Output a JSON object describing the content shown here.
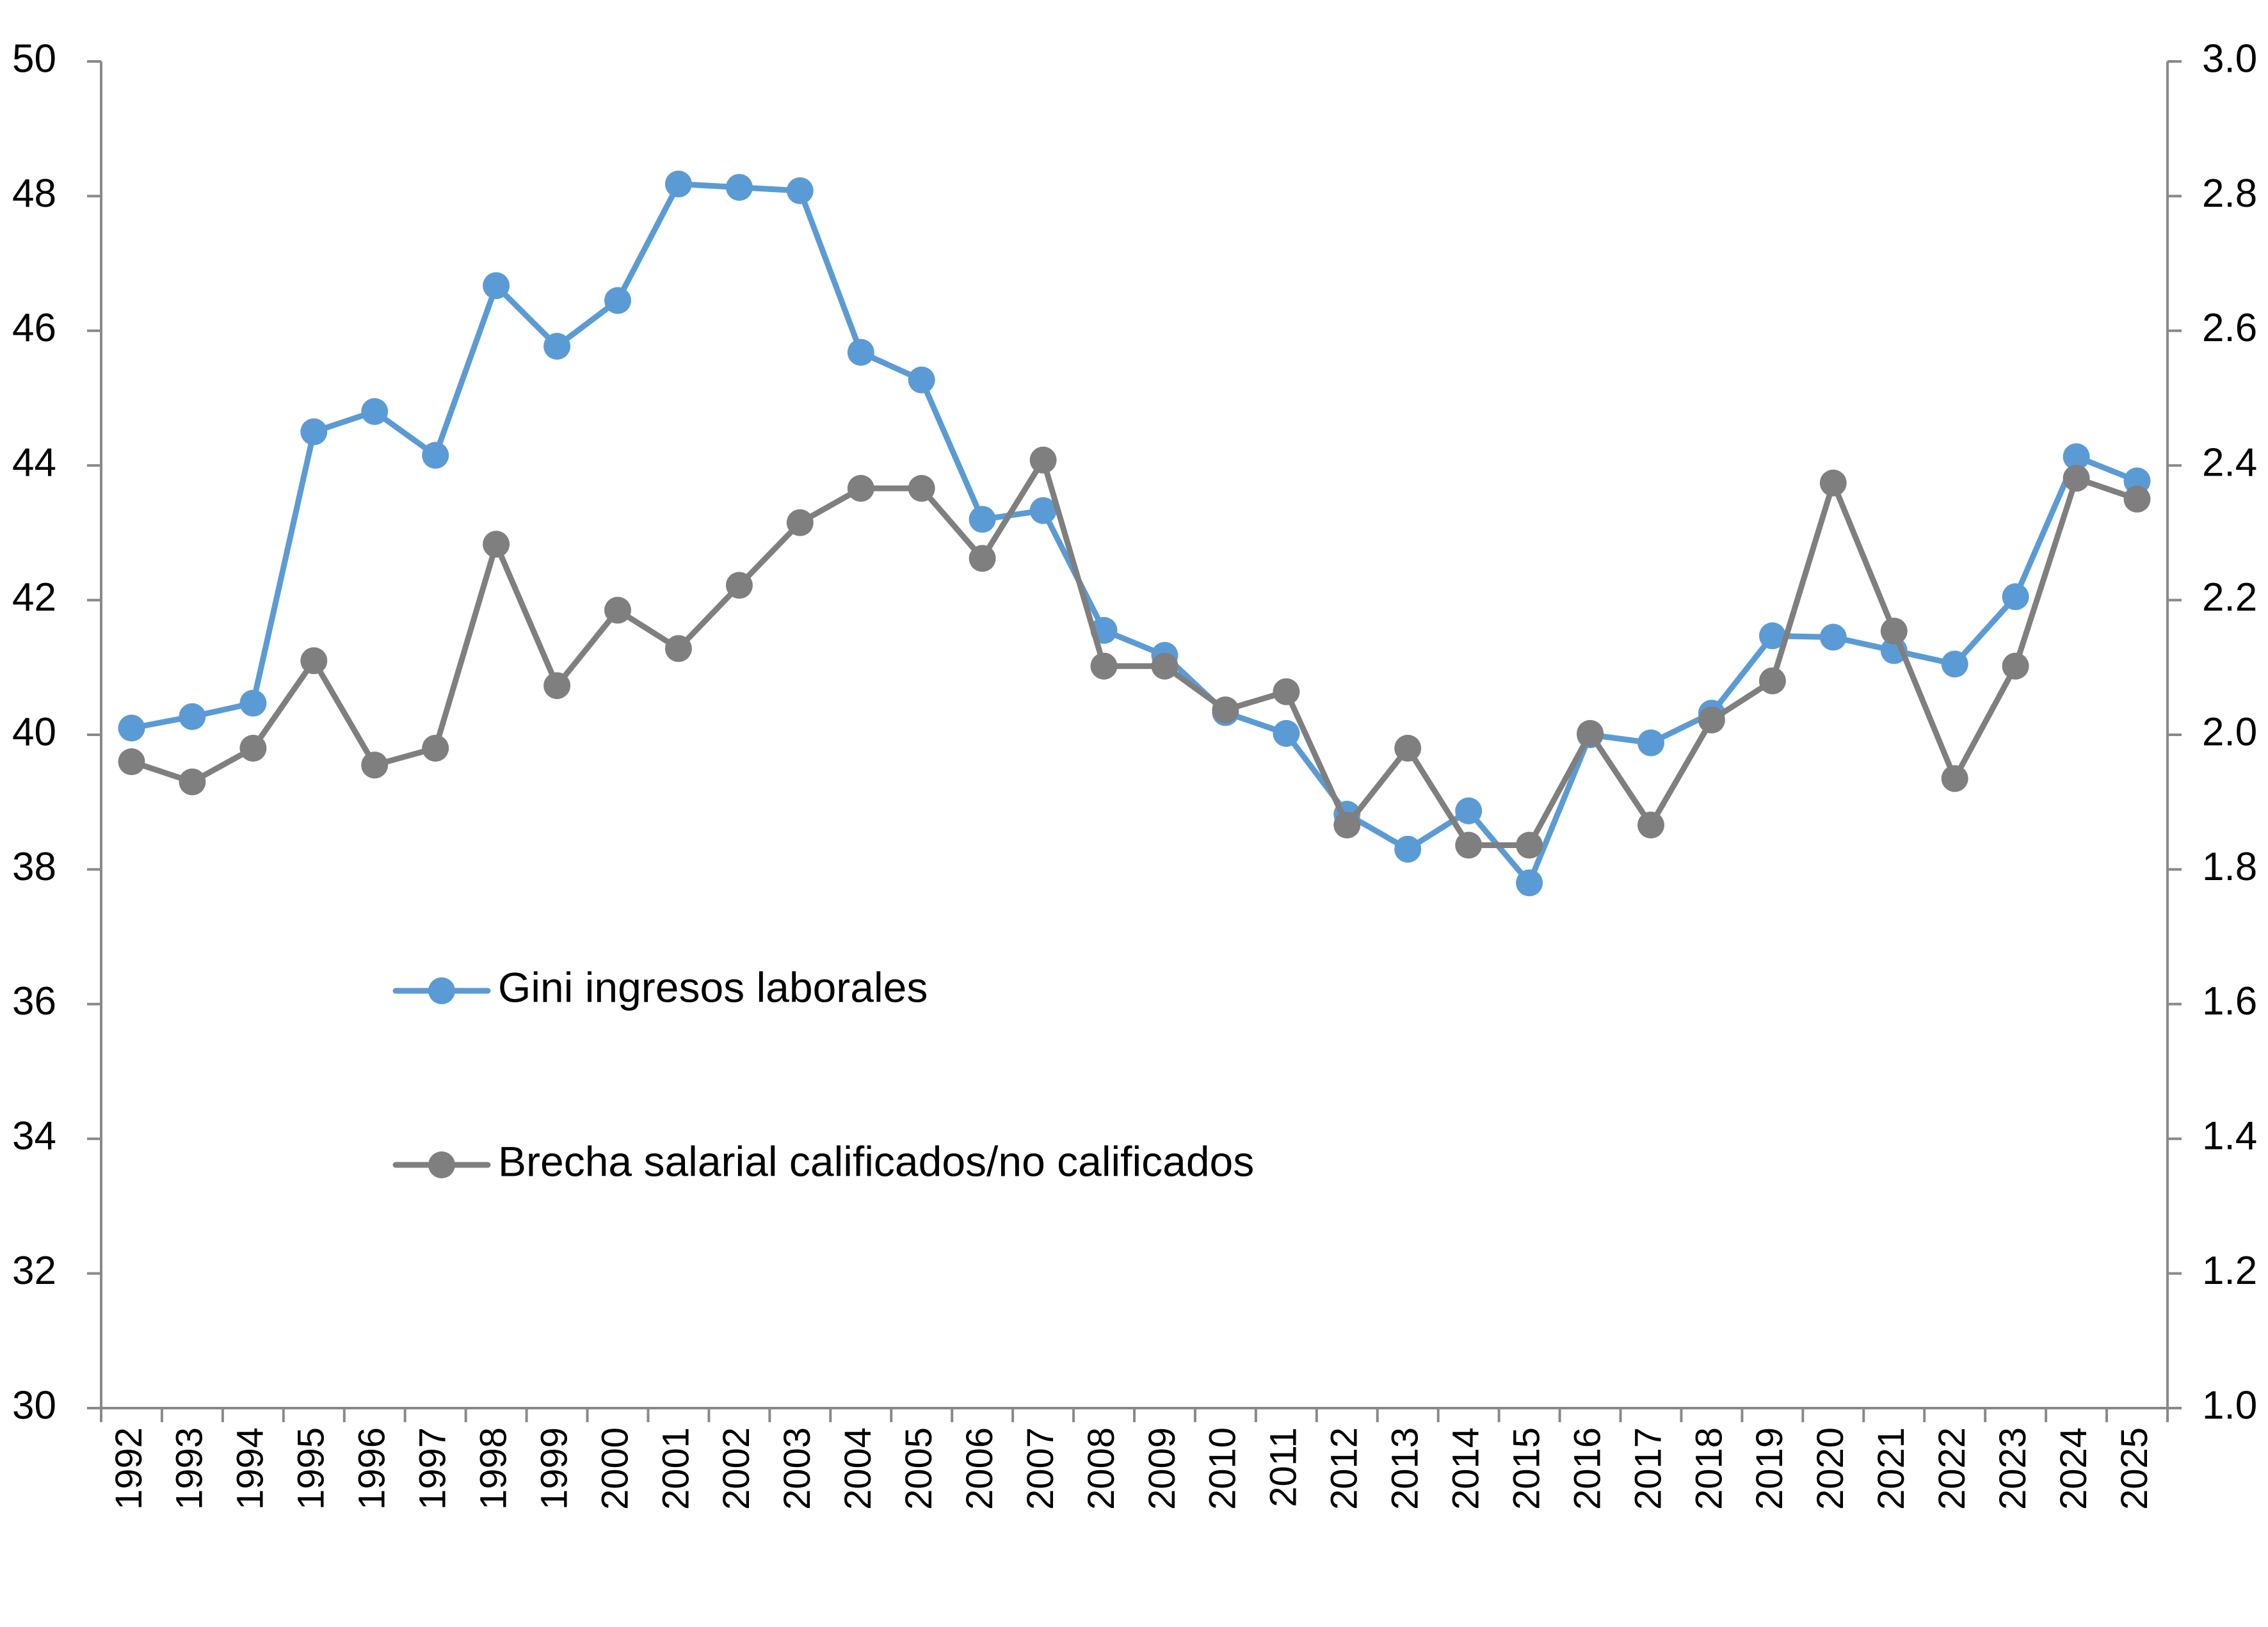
{
  "chart_data": {
    "type": "line",
    "title": "",
    "xlabel": "",
    "ylabel": "",
    "ylabel_right": "",
    "categories": [
      "1992",
      "1993",
      "1994",
      "1995",
      "1996",
      "1997",
      "1998",
      "1999",
      "2000",
      "2001",
      "2002",
      "2003",
      "2004",
      "2005",
      "2006",
      "2007",
      "2008",
      "2009",
      "2010",
      "2011",
      "2012",
      "2013",
      "2014",
      "2015",
      "2016",
      "2017",
      "2018",
      "2019",
      "2020",
      "2021",
      "2022",
      "2023",
      "2024",
      "2025"
    ],
    "y_left": {
      "min": 30,
      "max": 50,
      "step": 2,
      "tick_labels": [
        "30",
        "32",
        "34",
        "36",
        "38",
        "40",
        "42",
        "44",
        "46",
        "48",
        "50"
      ]
    },
    "y_right": {
      "min": 1.0,
      "max": 3.0,
      "step": 0.2,
      "tick_labels": [
        "1.0",
        "1.2",
        "1.4",
        "1.6",
        "1.8",
        "2.0",
        "2.2",
        "2.4",
        "2.6",
        "2.8",
        "3.0"
      ]
    },
    "grid": false,
    "legend_position": "center-left",
    "series": [
      {
        "name": "Gini ingresos laborales",
        "axis": "left",
        "color": "#5B9BD5",
        "values": [
          40.1,
          40.27,
          40.47,
          44.5,
          44.8,
          44.15,
          46.67,
          45.77,
          46.45,
          48.18,
          48.13,
          48.08,
          45.68,
          45.27,
          43.2,
          43.33,
          41.55,
          41.18,
          40.33,
          40.02,
          38.82,
          38.3,
          38.87,
          37.8,
          40.0,
          39.88,
          40.32,
          41.47,
          41.45,
          41.25,
          41.05,
          42.05,
          44.13,
          43.77
        ]
      },
      {
        "name": "Brecha salarial calificados/no calificados",
        "axis": "right",
        "color": "#7F7F7F",
        "values": [
          1.96,
          1.93,
          1.98,
          2.11,
          1.955,
          1.98,
          2.283,
          2.073,
          2.185,
          2.128,
          2.222,
          2.315,
          2.366,
          2.366,
          2.262,
          2.408,
          2.102,
          2.102,
          2.037,
          2.064,
          1.866,
          1.98,
          1.836,
          1.836,
          2.002,
          1.866,
          2.022,
          2.08,
          2.374,
          2.154,
          1.935,
          2.102,
          2.381,
          2.35
        ]
      }
    ]
  }
}
